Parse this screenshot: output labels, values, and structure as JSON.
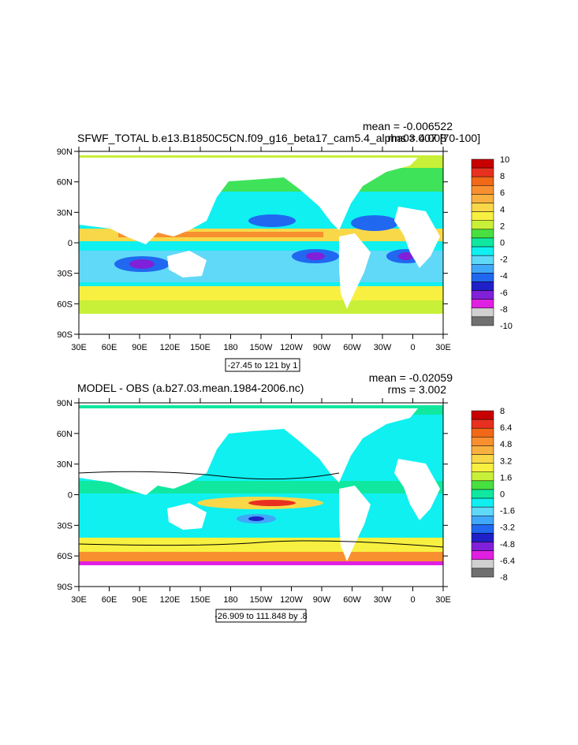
{
  "chart_data": [
    {
      "type": "heatmap",
      "title_left": "SFWF_TOTAL b.e13.B1850C5CN.f09_g16_beta17_cam5.4_alpha03.007 [70-100]",
      "mean_text": "mean = -0.006522",
      "rms_text": "rms = 4.008",
      "contour_info": "-27.45 to 121 by 1",
      "x_ticks": [
        "30E",
        "60E",
        "90E",
        "120E",
        "150E",
        "180",
        "150W",
        "120W",
        "90W",
        "60W",
        "30W",
        "0",
        "30E"
      ],
      "y_ticks": [
        "90N",
        "60N",
        "30N",
        "0",
        "30S",
        "60S",
        "90S"
      ],
      "xlim": [
        30,
        390
      ],
      "ylim": [
        -90,
        90
      ],
      "colorbar": {
        "labels": [
          "10",
          "8",
          "6",
          "4",
          "2",
          "0",
          "-2",
          "-4",
          "-6",
          "-8",
          "-10"
        ],
        "colors": [
          "#c80000",
          "#e83020",
          "#f06818",
          "#f89030",
          "#f8b040",
          "#f8d848",
          "#f8f040",
          "#c8f038",
          "#48e040",
          "#10e8a0",
          "#10f0f0",
          "#60d8f8",
          "#40a8f8",
          "#2068f0",
          "#2020c8",
          "#8020d8",
          "#e020e0",
          "#d0d0d0",
          "#707070"
        ]
      }
    },
    {
      "type": "heatmap",
      "title_left": "MODEL - OBS (a.b27.03.mean.1984-2006.nc)",
      "mean_text": "mean = -0.02059",
      "rms_text": "rms = 3.002",
      "contour_info": "-26.909 to 111.848 by .8",
      "x_ticks": [
        "30E",
        "60E",
        "90E",
        "120E",
        "150E",
        "180",
        "150W",
        "120W",
        "90W",
        "60W",
        "30W",
        "0",
        "30E"
      ],
      "y_ticks": [
        "90N",
        "60N",
        "30N",
        "0",
        "30S",
        "60S",
        "90S"
      ],
      "xlim": [
        30,
        390
      ],
      "ylim": [
        -90,
        90
      ],
      "colorbar": {
        "labels": [
          "8",
          "6.4",
          "4.8",
          "3.2",
          "1.6",
          "0",
          "-1.6",
          "-3.2",
          "-4.8",
          "-6.4",
          "-8"
        ],
        "colors": [
          "#c80000",
          "#e83020",
          "#f06818",
          "#f89030",
          "#f8b040",
          "#f8d848",
          "#f8f040",
          "#c8f038",
          "#48e040",
          "#10e8a0",
          "#10f0f0",
          "#60d8f8",
          "#40a8f8",
          "#2068f0",
          "#2020c8",
          "#8020d8",
          "#e020e0",
          "#d0d0d0",
          "#707070"
        ]
      }
    }
  ]
}
